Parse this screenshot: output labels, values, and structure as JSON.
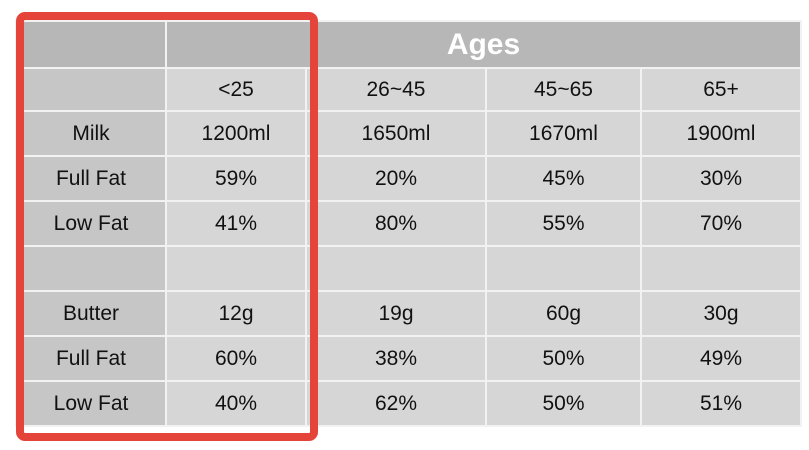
{
  "table": {
    "title": "Ages",
    "columns": [
      "<25",
      "26~45",
      "45~65",
      "65+"
    ],
    "groups": [
      {
        "rows": [
          [
            "Milk",
            "1200ml",
            "1650ml",
            "1670ml",
            "1900ml"
          ],
          [
            "Full Fat",
            "59%",
            "20%",
            "45%",
            "30%"
          ],
          [
            "Low Fat",
            "41%",
            "80%",
            "55%",
            "70%"
          ]
        ]
      },
      {
        "rows": [
          [
            "Butter",
            "12g",
            "19g",
            "60g",
            "30g"
          ],
          [
            "Full Fat",
            "60%",
            "38%",
            "50%",
            "49%"
          ],
          [
            "Low Fat",
            "40%",
            "62%",
            "50%",
            "51%"
          ]
        ]
      }
    ]
  }
}
